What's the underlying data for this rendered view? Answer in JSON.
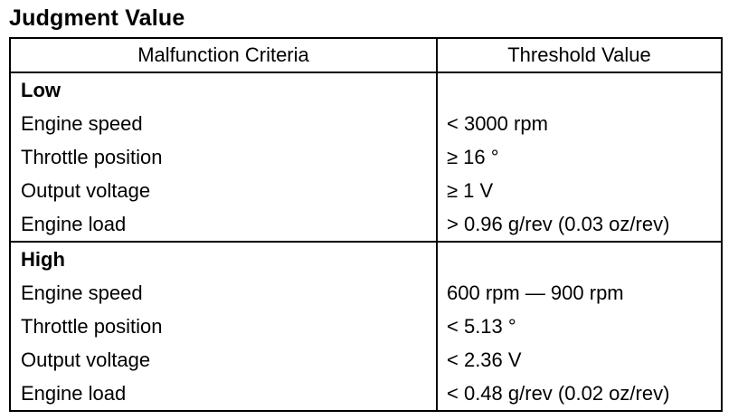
{
  "title": "Judgment Value",
  "table": {
    "headers": [
      "Malfunction Criteria",
      "Threshold Value"
    ],
    "groups": [
      {
        "name": "Low",
        "rows": [
          {
            "criteria": "Engine speed",
            "threshold": "< 3000 rpm"
          },
          {
            "criteria": "Throttle position",
            "threshold": "≥ 16 °"
          },
          {
            "criteria": "Output voltage",
            "threshold": "≥ 1 V"
          },
          {
            "criteria": "Engine load",
            "threshold": "> 0.96 g/rev (0.03 oz/rev)"
          }
        ]
      },
      {
        "name": "High",
        "rows": [
          {
            "criteria": "Engine speed",
            "threshold": "600 rpm — 900 rpm"
          },
          {
            "criteria": "Throttle position",
            "threshold": "< 5.13 °"
          },
          {
            "criteria": "Output voltage",
            "threshold": "< 2.36 V"
          },
          {
            "criteria": "Engine load",
            "threshold": "< 0.48 g/rev (0.02 oz/rev)"
          }
        ]
      }
    ]
  }
}
